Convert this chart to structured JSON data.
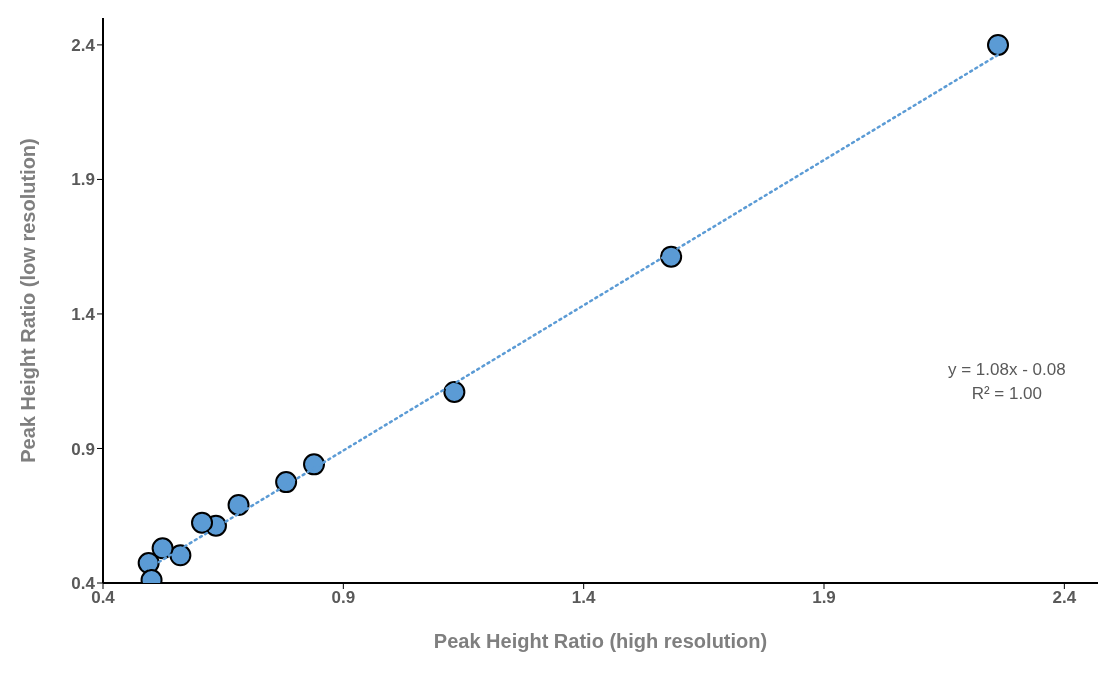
{
  "chart_data": {
    "type": "scatter",
    "xlabel": "Peak Height Ratio (high resolution)",
    "ylabel": "Peak Height Ratio (low resolution)",
    "xlim": [
      0.4,
      2.47
    ],
    "ylim": [
      0.4,
      2.5
    ],
    "xticks": [
      0.4,
      0.9,
      1.4,
      1.9,
      2.4
    ],
    "yticks": [
      0.4,
      0.9,
      1.4,
      1.9,
      2.4
    ],
    "grid": false,
    "marker": "circle",
    "series": [
      {
        "color": "#5b9bd5",
        "x": [
          2.262,
          1.582,
          1.131,
          0.839,
          0.781,
          0.682,
          0.635,
          0.606,
          0.561,
          0.524,
          0.495,
          0.501
        ],
        "values": [
          2.4,
          1.613,
          1.11,
          0.841,
          0.775,
          0.69,
          0.613,
          0.624,
          0.503,
          0.529,
          0.474,
          0.411
        ]
      },
      {
        "type": "line",
        "color": "#5b9bd5",
        "line_style": "dotted",
        "marker": "none",
        "x": [
          0.495,
          2.262
        ],
        "values": [
          0.455,
          2.363
        ]
      }
    ],
    "annotations": [
      "y = 1.08x - 0.08",
      "R² = 1.00"
    ]
  }
}
